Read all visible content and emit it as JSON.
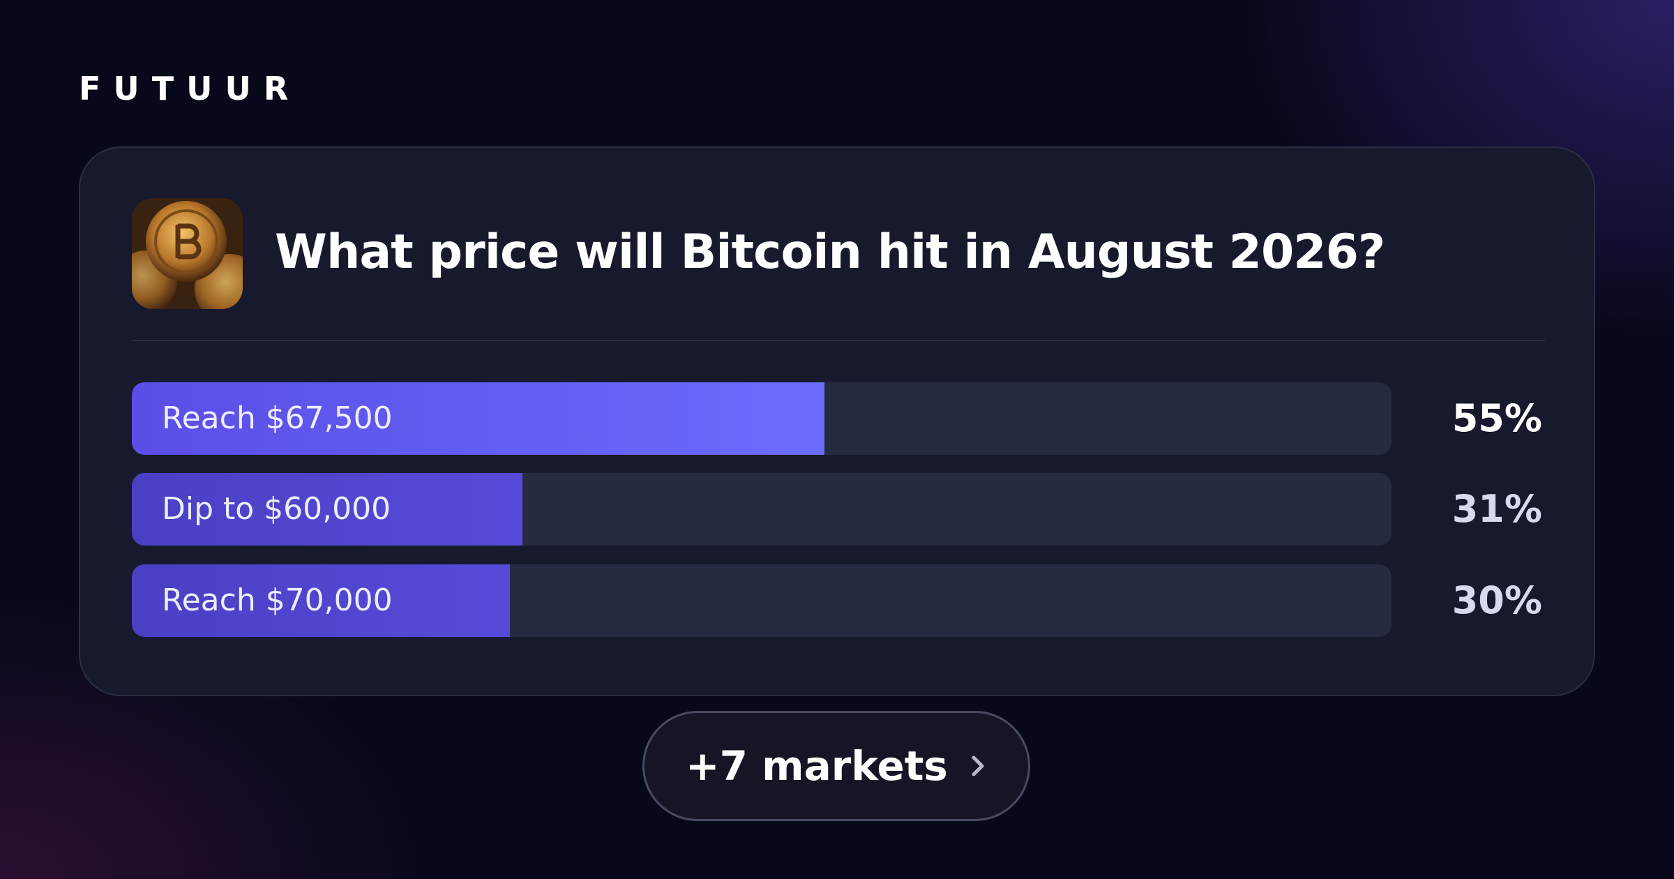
{
  "brand": "FUTUUR",
  "market": {
    "title": "What price will Bitcoin hit in August 2026?",
    "outcomes": [
      {
        "label": "Reach $67,500",
        "value": 55,
        "value_label": "55%"
      },
      {
        "label": "Dip to $60,000",
        "value": 31,
        "value_label": "31%"
      },
      {
        "label": "Reach $70,000",
        "value": 30,
        "value_label": "30%"
      }
    ]
  },
  "more_button": "+7 markets"
}
